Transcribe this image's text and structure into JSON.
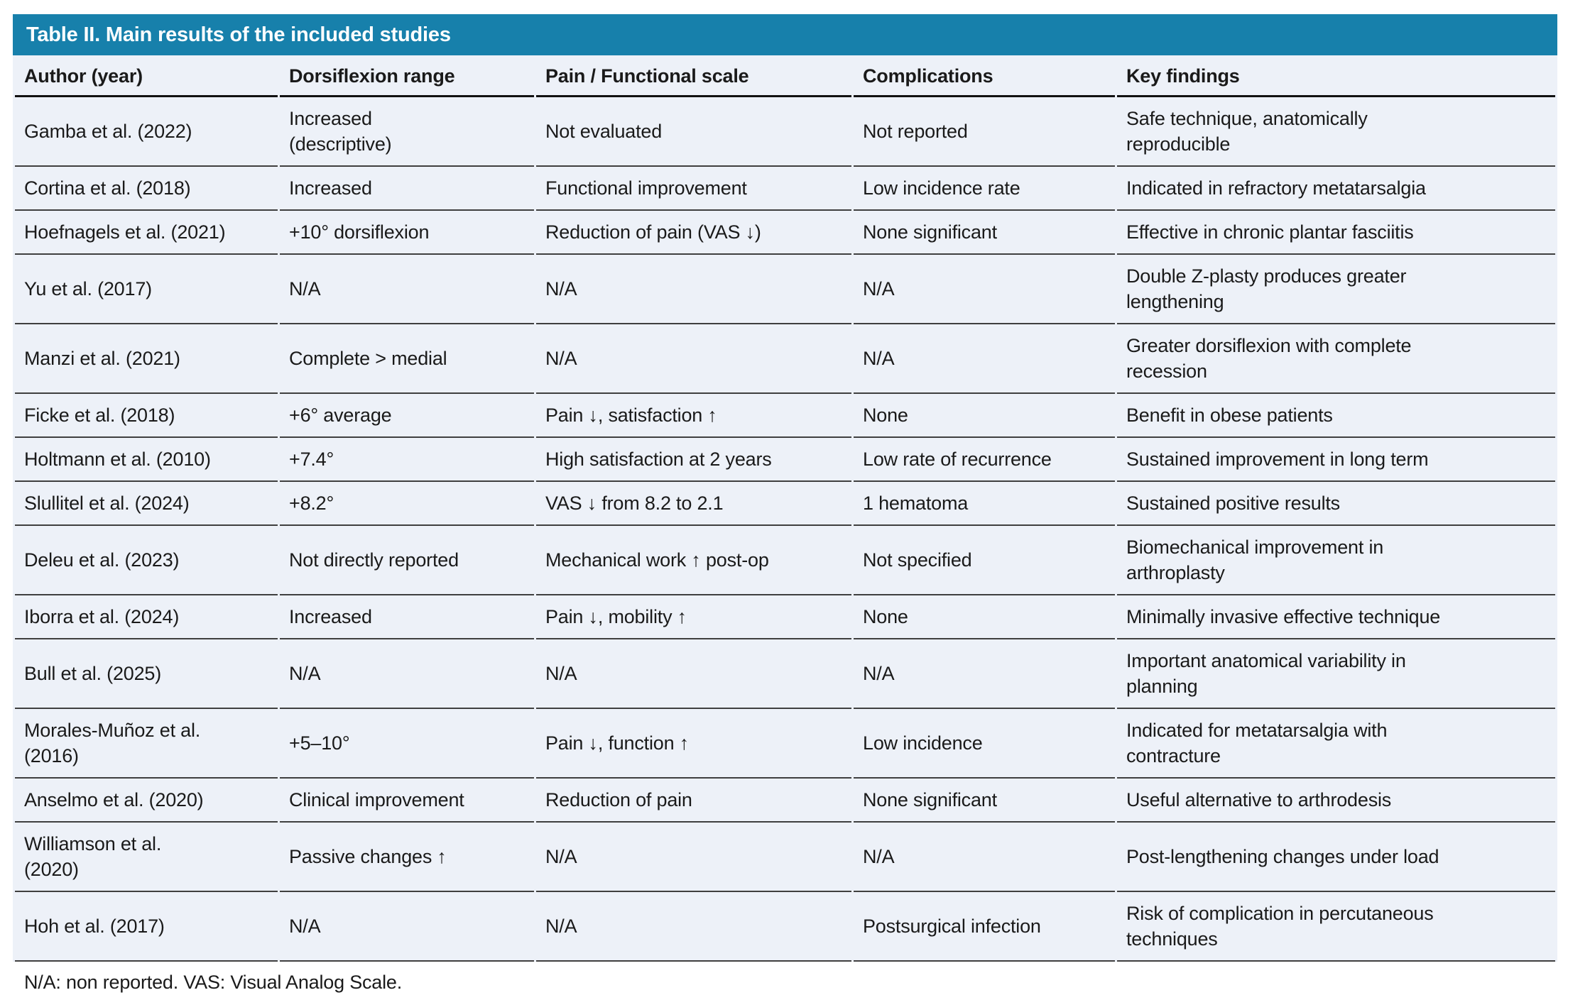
{
  "colors": {
    "accent": "#1780ab",
    "table_bg": "#edf1f8",
    "text": "#1a1a1a",
    "row_line": "#3f3f3f"
  },
  "table": {
    "title": "Table II. Main results of the included studies",
    "columns": {
      "author": "Author (year)",
      "dorsiflexion": "Dorsiflexion range",
      "pain_scale": "Pain / Functional scale",
      "complications": "Complications",
      "key_findings": "Key findings"
    },
    "rows": [
      {
        "author": "Gamba et al. (2022)",
        "dorsiflexion": "Increased\n(descriptive)",
        "pain_scale": "Not evaluated",
        "complications": "Not reported",
        "key_findings": "Safe technique, anatomically\nreproducible"
      },
      {
        "author": "Cortina et al. (2018)",
        "dorsiflexion": "Increased",
        "pain_scale": "Functional improvement",
        "complications": "Low incidence rate",
        "key_findings": "Indicated in refractory metatarsalgia"
      },
      {
        "author": "Hoefnagels et al. (2021)",
        "dorsiflexion": "+10° dorsiflexion",
        "pain_scale": "Reduction of pain (VAS ↓)",
        "complications": "None significant",
        "key_findings": "Effective in chronic plantar fasciitis"
      },
      {
        "author": "Yu et al. (2017)",
        "dorsiflexion": "N/A",
        "pain_scale": "N/A",
        "complications": "N/A",
        "key_findings": "Double Z-plasty produces greater\nlengthening"
      },
      {
        "author": "Manzi et al. (2021)",
        "dorsiflexion": "Complete > medial",
        "pain_scale": "N/A",
        "complications": "N/A",
        "key_findings": "Greater dorsiflexion with complete\nrecession"
      },
      {
        "author": "Ficke et al. (2018)",
        "dorsiflexion": "+6° average",
        "pain_scale": "Pain ↓, satisfaction ↑",
        "complications": "None",
        "key_findings": "Benefit in obese patients"
      },
      {
        "author": "Holtmann et al. (2010)",
        "dorsiflexion": "+7.4°",
        "pain_scale": "High satisfaction at 2 years",
        "complications": "Low rate of recurrence",
        "key_findings": "Sustained improvement in long term"
      },
      {
        "author": "Slullitel et al. (2024)",
        "dorsiflexion": "+8.2°",
        "pain_scale": "VAS ↓ from 8.2 to 2.1",
        "complications": "1 hematoma",
        "key_findings": "Sustained positive results"
      },
      {
        "author": "Deleu et al. (2023)",
        "dorsiflexion": "Not directly reported",
        "pain_scale": "Mechanical work ↑ post-op",
        "complications": "Not specified",
        "key_findings": "Biomechanical improvement in\narthroplasty"
      },
      {
        "author": "Iborra et al. (2024)",
        "dorsiflexion": "Increased",
        "pain_scale": "Pain ↓, mobility ↑",
        "complications": "None",
        "key_findings": "Minimally invasive effective technique"
      },
      {
        "author": "Bull et al. (2025)",
        "dorsiflexion": "N/A",
        "pain_scale": "N/A",
        "complications": "N/A",
        "key_findings": "Important anatomical variability in\nplanning"
      },
      {
        "author": "Morales-Muñoz et al.\n(2016)",
        "dorsiflexion": "+5–10°",
        "pain_scale": "Pain ↓, function ↑",
        "complications": "Low incidence",
        "key_findings": "Indicated for metatarsalgia with\ncontracture"
      },
      {
        "author": "Anselmo et al. (2020)",
        "dorsiflexion": "Clinical improvement",
        "pain_scale": "Reduction of pain",
        "complications": "None significant",
        "key_findings": "Useful alternative to arthrodesis"
      },
      {
        "author": "Williamson et al.\n(2020)",
        "dorsiflexion": "Passive changes ↑",
        "pain_scale": "N/A",
        "complications": "N/A",
        "key_findings": "Post-lengthening changes under load"
      },
      {
        "author": "Hoh et al. (2017)",
        "dorsiflexion": "N/A",
        "pain_scale": "N/A",
        "complications": "Postsurgical infection",
        "key_findings": "Risk of complication in percutaneous\ntechniques"
      }
    ],
    "footnote": "N/A: non reported. VAS: Visual Analog Scale."
  }
}
